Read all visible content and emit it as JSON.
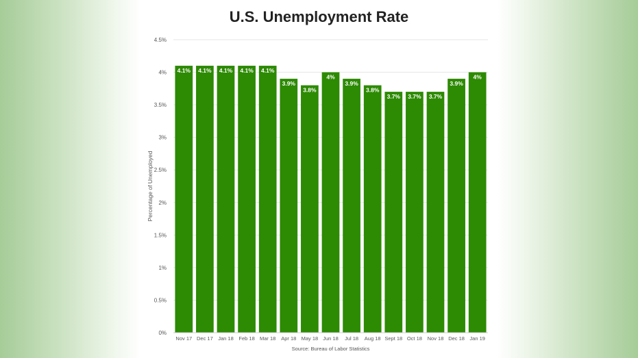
{
  "title": "U.S. Unemployment Rate",
  "colors": {
    "bar": "#2d8a03",
    "bar_label": "#ffffff",
    "grid": "#e6e6e6",
    "axis_text": "#555555"
  },
  "chart_data": {
    "type": "bar",
    "title": "U.S. Unemployment Rate",
    "xlabel": "",
    "ylabel": "Percentage of Unemployed",
    "source": "Source: Bureau of Labor Statistics",
    "categories": [
      "Nov 17",
      "Dec 17",
      "Jan 18",
      "Feb 18",
      "Mar 18",
      "Apr 18",
      "May 18",
      "Jun 18",
      "Jul 18",
      "Aug 18",
      "Sept 18",
      "Oct 18",
      "Nov 18",
      "Dec 18",
      "Jan 19"
    ],
    "values": [
      4.1,
      4.1,
      4.1,
      4.1,
      4.1,
      3.9,
      3.8,
      4.0,
      3.9,
      3.8,
      3.7,
      3.7,
      3.7,
      3.9,
      4.0
    ],
    "data_labels": [
      "4.1%",
      "4.1%",
      "4.1%",
      "4.1%",
      "4.1%",
      "3.9%",
      "3.8%",
      "4%",
      "3.9%",
      "3.8%",
      "3.7%",
      "3.7%",
      "3.7%",
      "3.9%",
      "4%"
    ],
    "ylim": [
      0,
      4.5
    ],
    "yticks": [
      0,
      0.5,
      1,
      1.5,
      2,
      2.5,
      3,
      3.5,
      4,
      4.5
    ],
    "ytick_labels": [
      "0%",
      "0.5%",
      "1%",
      "1.5%",
      "2%",
      "2.5%",
      "3%",
      "3.5%",
      "4%",
      "4.5%"
    ],
    "grid": true,
    "legend": "none"
  }
}
